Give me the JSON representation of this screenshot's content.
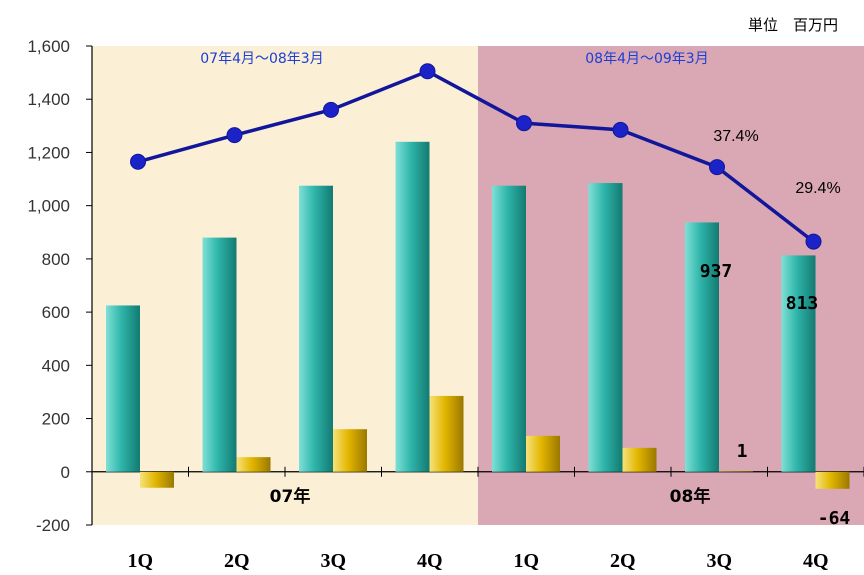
{
  "unit_label": "単位　百万円",
  "period_labels": [
    "07年4月～08年3月",
    "08年4月～09年3月"
  ],
  "year_labels": [
    "07年",
    "08年"
  ],
  "chart_data": {
    "type": "bar",
    "categories": [
      "1Q",
      "2Q",
      "3Q",
      "4Q",
      "1Q",
      "2Q",
      "3Q",
      "4Q"
    ],
    "ylim": [
      -200,
      1600
    ],
    "yticks": [
      -200,
      0,
      200,
      400,
      600,
      800,
      1000,
      1200,
      1400,
      1600
    ],
    "ytick_labels": [
      "-200",
      "0",
      "200",
      "400",
      "600",
      "800",
      "1,000",
      "1,200",
      "1,400",
      "1,600"
    ],
    "series": [
      {
        "type": "bar",
        "color": "#2fb5aa",
        "values": [
          625,
          880,
          1075,
          1240,
          1075,
          1085,
          937,
          813
        ]
      },
      {
        "type": "bar",
        "color": "#e2b600",
        "values": [
          -60,
          55,
          160,
          285,
          135,
          90,
          1,
          -64
        ]
      },
      {
        "type": "line",
        "color": "#12169a",
        "values": [
          1165,
          1265,
          1360,
          1505,
          1310,
          1285,
          1145,
          865
        ]
      }
    ],
    "data_labels": [
      "937",
      "813",
      "1",
      "-64"
    ],
    "percent_labels": [
      "37.4%",
      "29.4%"
    ],
    "background_colors": [
      "#fbefd6",
      "#d9a8b4"
    ]
  }
}
